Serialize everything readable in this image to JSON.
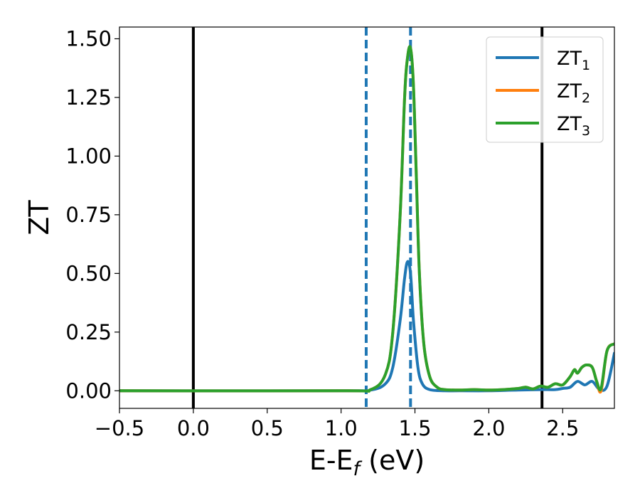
{
  "chart_data": {
    "type": "line",
    "xlabel": "E-E",
    "xlabel_sub": "f",
    "xlabel_unit": " (eV)",
    "ylabel": "ZT",
    "xlim": [
      -0.5,
      2.85
    ],
    "ylim": [
      -0.075,
      1.55
    ],
    "x_ticks": [
      -0.5,
      0.0,
      0.5,
      1.0,
      1.5,
      2.0,
      2.5
    ],
    "x_tick_labels": [
      "−0.5",
      "0.0",
      "0.5",
      "1.0",
      "1.5",
      "2.0",
      "2.5"
    ],
    "y_ticks": [
      0.0,
      0.25,
      0.5,
      0.75,
      1.0,
      1.25,
      1.5
    ],
    "y_tick_labels": [
      "0.00",
      "0.25",
      "0.50",
      "0.75",
      "1.00",
      "1.25",
      "1.50"
    ],
    "vlines": [
      {
        "x": 0.0,
        "color": "#000000",
        "style": "solid"
      },
      {
        "x": 2.36,
        "color": "#000000",
        "style": "solid"
      },
      {
        "x": 1.17,
        "color": "#1f77b4",
        "style": "dashed"
      },
      {
        "x": 1.47,
        "color": "#1f77b4",
        "style": "dashed"
      }
    ],
    "legend_position": "top-right",
    "series": [
      {
        "name": "ZT",
        "name_sub": "1",
        "color": "#1f77b4",
        "x": [
          -0.5,
          1.0,
          1.2,
          1.3,
          1.35,
          1.4,
          1.43,
          1.45,
          1.47,
          1.49,
          1.52,
          1.55,
          1.6,
          1.7,
          1.8,
          2.0,
          2.2,
          2.35,
          2.45,
          2.5,
          2.55,
          2.6,
          2.65,
          2.7,
          2.75,
          2.8,
          2.85
        ],
        "y": [
          0.0,
          0.0,
          0.003,
          0.03,
          0.1,
          0.3,
          0.48,
          0.55,
          0.5,
          0.3,
          0.1,
          0.03,
          0.005,
          0.0,
          0.0,
          0.0,
          0.003,
          0.005,
          0.005,
          0.01,
          0.015,
          0.04,
          0.025,
          0.04,
          0.005,
          0.02,
          0.16
        ]
      },
      {
        "name": "ZT",
        "name_sub": "2",
        "color": "#ff7f0e",
        "x": [
          -0.5,
          1.0,
          1.2,
          1.3,
          1.35,
          1.4,
          1.43,
          1.45,
          1.47,
          1.49,
          1.51,
          1.53,
          1.56,
          1.6,
          1.65,
          1.7,
          1.8,
          1.9,
          2.0,
          2.1,
          2.2,
          2.25,
          2.3,
          2.35,
          2.4,
          2.45,
          2.5,
          2.55,
          2.58,
          2.6,
          2.63,
          2.66,
          2.7,
          2.73,
          2.76,
          2.8,
          2.85
        ],
        "y": [
          0.0,
          0.0,
          0.005,
          0.07,
          0.25,
          0.75,
          1.25,
          1.42,
          1.46,
          1.3,
          0.9,
          0.5,
          0.2,
          0.06,
          0.015,
          0.005,
          0.003,
          0.005,
          0.003,
          0.005,
          0.01,
          0.015,
          0.008,
          0.02,
          0.015,
          0.03,
          0.025,
          0.06,
          0.09,
          0.075,
          0.1,
          0.11,
          0.1,
          0.04,
          0.0,
          0.17,
          0.2
        ]
      },
      {
        "name": "ZT",
        "name_sub": "3",
        "color": "#2ca02c",
        "x": [
          -0.5,
          1.0,
          1.2,
          1.3,
          1.35,
          1.4,
          1.43,
          1.45,
          1.47,
          1.49,
          1.51,
          1.53,
          1.56,
          1.6,
          1.65,
          1.7,
          1.8,
          1.9,
          2.0,
          2.1,
          2.2,
          2.25,
          2.3,
          2.35,
          2.4,
          2.45,
          2.5,
          2.55,
          2.58,
          2.6,
          2.63,
          2.66,
          2.7,
          2.73,
          2.76,
          2.8,
          2.85
        ],
        "y": [
          0.0,
          0.0,
          0.005,
          0.07,
          0.25,
          0.75,
          1.25,
          1.42,
          1.46,
          1.3,
          0.9,
          0.5,
          0.2,
          0.06,
          0.015,
          0.005,
          0.003,
          0.005,
          0.003,
          0.005,
          0.01,
          0.015,
          0.008,
          0.02,
          0.015,
          0.03,
          0.025,
          0.06,
          0.09,
          0.075,
          0.1,
          0.11,
          0.1,
          0.04,
          0.01,
          0.17,
          0.2
        ]
      }
    ]
  }
}
